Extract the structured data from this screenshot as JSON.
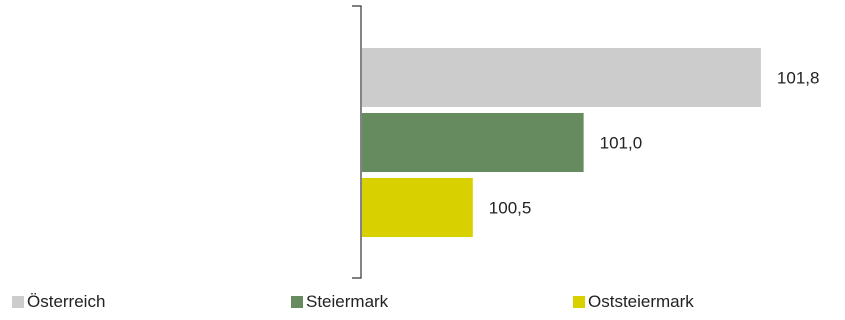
{
  "chart_data": {
    "type": "bar",
    "orientation": "horizontal",
    "categories": [
      "Österreich",
      "Steiermark",
      "Oststeiermark"
    ],
    "values": [
      101.8,
      101.0,
      100.5
    ],
    "value_labels": [
      "101,8",
      "101,0",
      "100,5"
    ],
    "colors": [
      "#cccccc",
      "#668b5e",
      "#d9d000"
    ],
    "xlim": [
      100.0,
      101.85
    ],
    "title": "",
    "xlabel": "",
    "ylabel": "",
    "grid": false,
    "legend_position": "bottom",
    "legend": [
      "Österreich",
      "Steiermark",
      "Oststeiermark"
    ]
  }
}
